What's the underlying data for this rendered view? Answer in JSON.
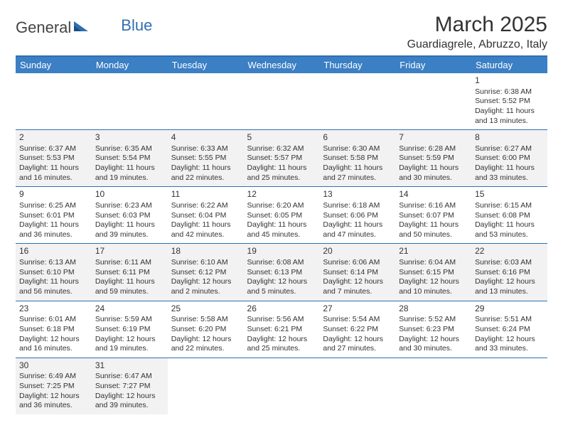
{
  "logo": {
    "text1": "General",
    "text2": "Blue"
  },
  "title": "March 2025",
  "subtitle": "Guardiagrele, Abruzzo, Italy",
  "colors": {
    "header_bg": "#3b7fc4",
    "header_text": "#ffffff",
    "rule": "#2f6fb0",
    "shade": "#f2f2f2",
    "text": "#333333"
  },
  "day_headers": [
    "Sunday",
    "Monday",
    "Tuesday",
    "Wednesday",
    "Thursday",
    "Friday",
    "Saturday"
  ],
  "weeks": [
    [
      null,
      null,
      null,
      null,
      null,
      null,
      {
        "d": "1",
        "sr": "Sunrise: 6:38 AM",
        "ss": "Sunset: 5:52 PM",
        "dl1": "Daylight: 11 hours",
        "dl2": "and 13 minutes."
      }
    ],
    [
      {
        "d": "2",
        "sr": "Sunrise: 6:37 AM",
        "ss": "Sunset: 5:53 PM",
        "dl1": "Daylight: 11 hours",
        "dl2": "and 16 minutes."
      },
      {
        "d": "3",
        "sr": "Sunrise: 6:35 AM",
        "ss": "Sunset: 5:54 PM",
        "dl1": "Daylight: 11 hours",
        "dl2": "and 19 minutes."
      },
      {
        "d": "4",
        "sr": "Sunrise: 6:33 AM",
        "ss": "Sunset: 5:55 PM",
        "dl1": "Daylight: 11 hours",
        "dl2": "and 22 minutes."
      },
      {
        "d": "5",
        "sr": "Sunrise: 6:32 AM",
        "ss": "Sunset: 5:57 PM",
        "dl1": "Daylight: 11 hours",
        "dl2": "and 25 minutes."
      },
      {
        "d": "6",
        "sr": "Sunrise: 6:30 AM",
        "ss": "Sunset: 5:58 PM",
        "dl1": "Daylight: 11 hours",
        "dl2": "and 27 minutes."
      },
      {
        "d": "7",
        "sr": "Sunrise: 6:28 AM",
        "ss": "Sunset: 5:59 PM",
        "dl1": "Daylight: 11 hours",
        "dl2": "and 30 minutes."
      },
      {
        "d": "8",
        "sr": "Sunrise: 6:27 AM",
        "ss": "Sunset: 6:00 PM",
        "dl1": "Daylight: 11 hours",
        "dl2": "and 33 minutes."
      }
    ],
    [
      {
        "d": "9",
        "sr": "Sunrise: 6:25 AM",
        "ss": "Sunset: 6:01 PM",
        "dl1": "Daylight: 11 hours",
        "dl2": "and 36 minutes."
      },
      {
        "d": "10",
        "sr": "Sunrise: 6:23 AM",
        "ss": "Sunset: 6:03 PM",
        "dl1": "Daylight: 11 hours",
        "dl2": "and 39 minutes."
      },
      {
        "d": "11",
        "sr": "Sunrise: 6:22 AM",
        "ss": "Sunset: 6:04 PM",
        "dl1": "Daylight: 11 hours",
        "dl2": "and 42 minutes."
      },
      {
        "d": "12",
        "sr": "Sunrise: 6:20 AM",
        "ss": "Sunset: 6:05 PM",
        "dl1": "Daylight: 11 hours",
        "dl2": "and 45 minutes."
      },
      {
        "d": "13",
        "sr": "Sunrise: 6:18 AM",
        "ss": "Sunset: 6:06 PM",
        "dl1": "Daylight: 11 hours",
        "dl2": "and 47 minutes."
      },
      {
        "d": "14",
        "sr": "Sunrise: 6:16 AM",
        "ss": "Sunset: 6:07 PM",
        "dl1": "Daylight: 11 hours",
        "dl2": "and 50 minutes."
      },
      {
        "d": "15",
        "sr": "Sunrise: 6:15 AM",
        "ss": "Sunset: 6:08 PM",
        "dl1": "Daylight: 11 hours",
        "dl2": "and 53 minutes."
      }
    ],
    [
      {
        "d": "16",
        "sr": "Sunrise: 6:13 AM",
        "ss": "Sunset: 6:10 PM",
        "dl1": "Daylight: 11 hours",
        "dl2": "and 56 minutes."
      },
      {
        "d": "17",
        "sr": "Sunrise: 6:11 AM",
        "ss": "Sunset: 6:11 PM",
        "dl1": "Daylight: 11 hours",
        "dl2": "and 59 minutes."
      },
      {
        "d": "18",
        "sr": "Sunrise: 6:10 AM",
        "ss": "Sunset: 6:12 PM",
        "dl1": "Daylight: 12 hours",
        "dl2": "and 2 minutes."
      },
      {
        "d": "19",
        "sr": "Sunrise: 6:08 AM",
        "ss": "Sunset: 6:13 PM",
        "dl1": "Daylight: 12 hours",
        "dl2": "and 5 minutes."
      },
      {
        "d": "20",
        "sr": "Sunrise: 6:06 AM",
        "ss": "Sunset: 6:14 PM",
        "dl1": "Daylight: 12 hours",
        "dl2": "and 7 minutes."
      },
      {
        "d": "21",
        "sr": "Sunrise: 6:04 AM",
        "ss": "Sunset: 6:15 PM",
        "dl1": "Daylight: 12 hours",
        "dl2": "and 10 minutes."
      },
      {
        "d": "22",
        "sr": "Sunrise: 6:03 AM",
        "ss": "Sunset: 6:16 PM",
        "dl1": "Daylight: 12 hours",
        "dl2": "and 13 minutes."
      }
    ],
    [
      {
        "d": "23",
        "sr": "Sunrise: 6:01 AM",
        "ss": "Sunset: 6:18 PM",
        "dl1": "Daylight: 12 hours",
        "dl2": "and 16 minutes."
      },
      {
        "d": "24",
        "sr": "Sunrise: 5:59 AM",
        "ss": "Sunset: 6:19 PM",
        "dl1": "Daylight: 12 hours",
        "dl2": "and 19 minutes."
      },
      {
        "d": "25",
        "sr": "Sunrise: 5:58 AM",
        "ss": "Sunset: 6:20 PM",
        "dl1": "Daylight: 12 hours",
        "dl2": "and 22 minutes."
      },
      {
        "d": "26",
        "sr": "Sunrise: 5:56 AM",
        "ss": "Sunset: 6:21 PM",
        "dl1": "Daylight: 12 hours",
        "dl2": "and 25 minutes."
      },
      {
        "d": "27",
        "sr": "Sunrise: 5:54 AM",
        "ss": "Sunset: 6:22 PM",
        "dl1": "Daylight: 12 hours",
        "dl2": "and 27 minutes."
      },
      {
        "d": "28",
        "sr": "Sunrise: 5:52 AM",
        "ss": "Sunset: 6:23 PM",
        "dl1": "Daylight: 12 hours",
        "dl2": "and 30 minutes."
      },
      {
        "d": "29",
        "sr": "Sunrise: 5:51 AM",
        "ss": "Sunset: 6:24 PM",
        "dl1": "Daylight: 12 hours",
        "dl2": "and 33 minutes."
      }
    ],
    [
      {
        "d": "30",
        "sr": "Sunrise: 6:49 AM",
        "ss": "Sunset: 7:25 PM",
        "dl1": "Daylight: 12 hours",
        "dl2": "and 36 minutes."
      },
      {
        "d": "31",
        "sr": "Sunrise: 6:47 AM",
        "ss": "Sunset: 7:27 PM",
        "dl1": "Daylight: 12 hours",
        "dl2": "and 39 minutes."
      },
      null,
      null,
      null,
      null,
      null
    ]
  ]
}
